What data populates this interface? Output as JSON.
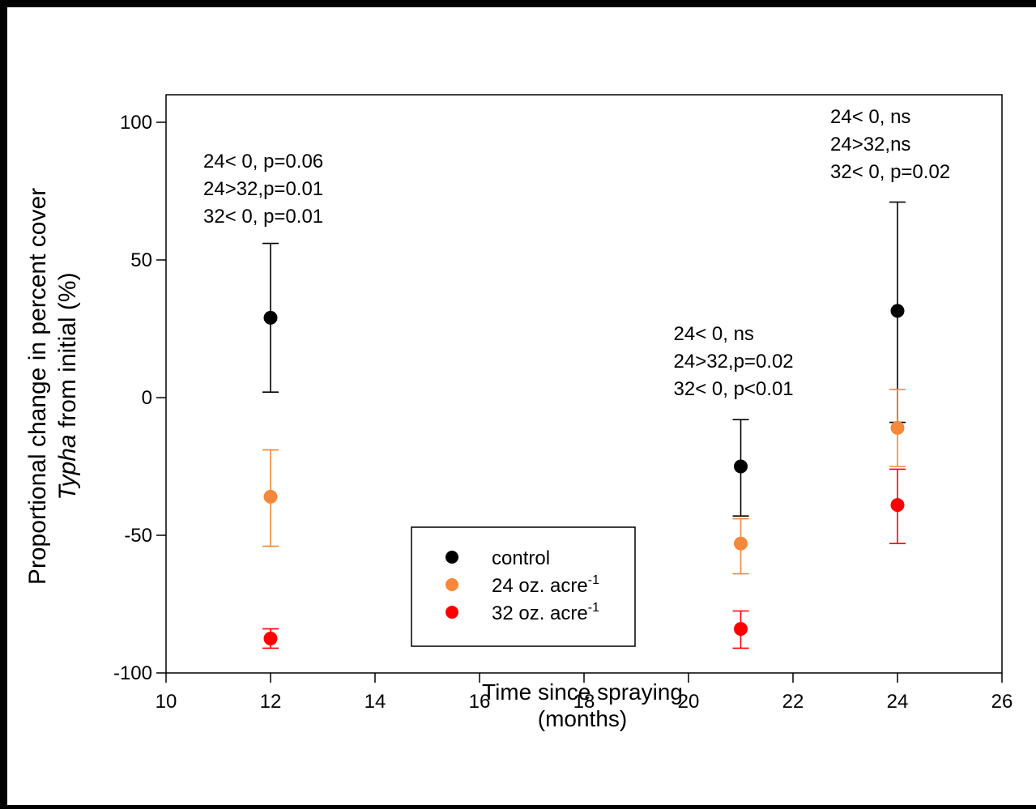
{
  "chart_data": {
    "type": "scatter",
    "ylabel_line1": "Proportional change in percent cover",
    "ylabel_line2_italic": "Typha",
    "ylabel_line2_rest": " from initial (%)",
    "xlabel_line1": "Time since spraying",
    "xlabel_line2": "(months)",
    "xlim": [
      10,
      26
    ],
    "ylim": [
      -100,
      110
    ],
    "xticks": [
      10,
      12,
      14,
      16,
      18,
      20,
      22,
      24,
      26
    ],
    "yticks": [
      -100,
      -50,
      0,
      50,
      100
    ],
    "series": [
      {
        "name": "control",
        "color": "#000000",
        "points": [
          {
            "x": 12,
            "y": 29,
            "err_low": 2,
            "err_high": 56
          },
          {
            "x": 21,
            "y": -25,
            "err_low": -43,
            "err_high": -8
          },
          {
            "x": 24,
            "y": 31.5,
            "err_low": -9,
            "err_high": 71
          }
        ]
      },
      {
        "name": "24 oz. acre",
        "superscript": "-1",
        "color": "#f5883a",
        "points": [
          {
            "x": 12,
            "y": -36,
            "err_low": -54,
            "err_high": -19
          },
          {
            "x": 21,
            "y": -53,
            "err_low": -64,
            "err_high": -44
          },
          {
            "x": 24,
            "y": -11,
            "err_low": -25,
            "err_high": 3
          }
        ]
      },
      {
        "name": "32 oz. acre",
        "superscript": "-1",
        "color": "#ff0000",
        "points": [
          {
            "x": 12,
            "y": -87.5,
            "err_low": -91,
            "err_high": -84
          },
          {
            "x": 21,
            "y": -84,
            "err_low": -91,
            "err_high": -77.5
          },
          {
            "x": 24,
            "y": -39,
            "err_low": -53,
            "err_high": -26
          }
        ]
      }
    ],
    "annotations": [
      {
        "x": 12,
        "lines": [
          "24< 0, p=0.06",
          "24>32,p=0.01",
          "32< 0, p=0.01"
        ]
      },
      {
        "x": 21,
        "lines": [
          "24< 0, ns",
          "24>32,p=0.02",
          "32< 0, p<0.01"
        ]
      },
      {
        "x": 24,
        "lines": [
          "24< 0, ns",
          "24>32,ns",
          "32< 0, p=0.02"
        ]
      }
    ],
    "legend_position": "bottom-center",
    "grid": false
  }
}
